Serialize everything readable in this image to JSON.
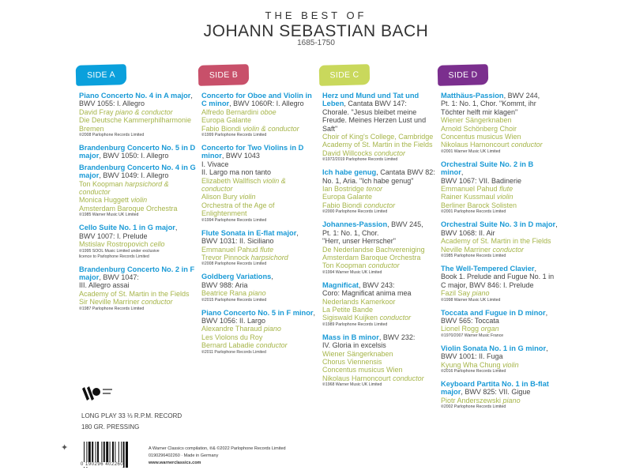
{
  "header": {
    "line1": "THE BEST OF",
    "line2": "JOHANN SEBASTIAN BACH",
    "dates": "1685-1750"
  },
  "colors": {
    "title_blue": "#1a9ad6",
    "performer_green": "#a6b54a",
    "side_a": "#0aa0dc",
    "side_b": "#c8506a",
    "side_c": "#c9d85c",
    "side_d": "#7b2f8e"
  },
  "sides": [
    {
      "label": "SIDE A",
      "color": "#0aa0dc",
      "tracks": [
        {
          "title": "Piano Concerto No. 4 in A major",
          "detail": ", BWV 1055: I. Allegro",
          "performers": [
            {
              "name": "David Fray",
              "role": "piano & conductor"
            },
            {
              "name": "Die Deutsche Kammerphilharmonie Bremen",
              "role": ""
            }
          ],
          "copyright": "℗2008 Parlophone Records Limited"
        },
        {
          "title": "Brandenburg Concerto No. 5 in D major",
          "detail": ", BWV 1050: I. Allegro",
          "performers": [],
          "copyright": ""
        },
        {
          "title": "Brandenburg Concerto No. 4 in G major",
          "detail": ", BWV 1049: I. Allegro",
          "performers": [
            {
              "name": "Ton Koopman",
              "role": "harpsichord & conductor"
            },
            {
              "name": "Monica Huggett",
              "role": "violin"
            },
            {
              "name": "Amsterdam Baroque Orchestra",
              "role": ""
            }
          ],
          "copyright": "℗1985 Warner Music UK Limited"
        },
        {
          "title": "Cello Suite No. 1 in G major",
          "detail": ",\nBWV 1007: I. Prelude",
          "performers": [
            {
              "name": "Mstislav Rostropovich",
              "role": "cello"
            }
          ],
          "copyright": "℗1995 SOOL Music Limited under exclusive\nlicence to Parlophone Records Limited"
        },
        {
          "title": "Brandenburg Concerto No. 2 in F major",
          "detail": ", BWV 1047:\nIII. Allegro assai",
          "performers": [
            {
              "name": "Academy of St. Martin in the Fields",
              "role": ""
            },
            {
              "name": "Sir Neville Marriner",
              "role": "conductor"
            }
          ],
          "copyright": "℗1987 Parlophone Records Limited"
        }
      ]
    },
    {
      "label": "SIDE B",
      "color": "#c8506a",
      "tracks": [
        {
          "title": "Concerto for Oboe and Violin in C minor",
          "detail": ", BWV 1060R: I. Allegro",
          "performers": [
            {
              "name": "Alfredo Bernardini",
              "role": "oboe"
            },
            {
              "name": "Europa Galante",
              "role": ""
            },
            {
              "name": "Fabio Biondi",
              "role": "violin & conductor"
            }
          ],
          "copyright": "℗1999 Parlophone Records Limited"
        },
        {
          "title": "Concerto for Two Violins in D minor",
          "detail": ", BWV 1043\nI.   Vivace\nII.  Largo ma non tanto",
          "performers": [
            {
              "name": "Elizabeth Wallfisch",
              "role": "violin & conductor"
            },
            {
              "name": "Alison Bury",
              "role": "violin"
            },
            {
              "name": "Orchestra of the Age of Enlightenment",
              "role": ""
            }
          ],
          "copyright": "℗1994 Parlophone Records Limited"
        },
        {
          "title": "Flute Sonata in E-flat major",
          "detail": ",\nBWV 1031: II. Siciliano",
          "performers": [
            {
              "name": "Emmanuel Pahud",
              "role": "flute"
            },
            {
              "name": "Trevor Pinnock",
              "role": "harpsichord"
            }
          ],
          "copyright": "℗2008 Parlophone Records Limited"
        },
        {
          "title": "Goldberg Variations",
          "detail": ",\nBWV 988: Aria",
          "performers": [
            {
              "name": "Beatrice Rana",
              "role": "piano"
            }
          ],
          "copyright": "℗2015 Parlophone Records Limited"
        },
        {
          "title": "Piano Concerto No. 5 in F minor",
          "detail": ", BWV 1056: II. Largo",
          "performers": [
            {
              "name": "Alexandre Tharaud",
              "role": "piano"
            },
            {
              "name": "Les Violons du Roy",
              "role": ""
            },
            {
              "name": "Bernard Labadie",
              "role": "conductor"
            }
          ],
          "copyright": "℗2011 Parlophone Records Limited"
        }
      ]
    },
    {
      "label": "SIDE C",
      "color": "#c9d85c",
      "tracks": [
        {
          "title": "Herz und Mund und Tat und Leben",
          "detail": ", Cantata BWV 147:\nChorale. \"Jesus bleibet meine Freude. Meines Herzen Lust und Saft\"",
          "performers": [
            {
              "name": "Choir of King's College, Cambridge",
              "role": ""
            },
            {
              "name": "Academy of St. Martin in the Fields",
              "role": ""
            },
            {
              "name": "David Willcocks",
              "role": "conductor"
            }
          ],
          "copyright": "℗1972/2019 Parlophone Records Limited"
        },
        {
          "title": "Ich habe genug",
          "detail": ", Cantata BWV 82:\nNo. 1, Aria. \"Ich habe genug\"",
          "performers": [
            {
              "name": "Ian Bostridge",
              "role": "tenor"
            },
            {
              "name": "Europa Galante",
              "role": ""
            },
            {
              "name": "Fabio Biondi",
              "role": "conductor"
            }
          ],
          "copyright": "℗2000 Parlophone Records Limited"
        },
        {
          "title": "Johannes-Passion",
          "detail": ", BWV 245,\nPt. 1: No. 1, Chor.\n\"Herr, unser Herrscher\"",
          "performers": [
            {
              "name": "De Nederlandse Bachvereniging",
              "role": ""
            },
            {
              "name": "Amsterdam Baroque Orchestra",
              "role": ""
            },
            {
              "name": "Ton Koopman",
              "role": "conductor"
            }
          ],
          "copyright": "℗1994 Warner Music UK Limited"
        },
        {
          "title": "Magnificat",
          "detail": ", BWV 243:\nCoro: Magnificat anima mea",
          "performers": [
            {
              "name": "Nederlands Kamerkoor",
              "role": ""
            },
            {
              "name": "La Petite Bande",
              "role": ""
            },
            {
              "name": "Sigiswald Kuijken",
              "role": "conductor"
            }
          ],
          "copyright": "℗1989 Parlophone Records Limited"
        },
        {
          "title": "Mass in B minor",
          "detail": ", BWV 232:\nIV. Gloria in excelsis",
          "performers": [
            {
              "name": "Wiener Sängerknaben",
              "role": ""
            },
            {
              "name": "Chorus Viennensis",
              "role": ""
            },
            {
              "name": "Concentus musicus Wien",
              "role": ""
            },
            {
              "name": "Nikolaus Harnoncourt",
              "role": "conductor"
            }
          ],
          "copyright": "℗1968 Warner Music UK Limited"
        }
      ]
    },
    {
      "label": "SIDE D",
      "color": "#7b2f8e",
      "tracks": [
        {
          "title": "Matthäus-Passion",
          "detail": ", BWV 244,\nPt. 1: No. 1, Chor. \"Kommt, ihr Töchter helft mir klagen\"",
          "performers": [
            {
              "name": "Wiener Sängerknaben",
              "role": ""
            },
            {
              "name": "Arnold Schönberg Choir",
              "role": ""
            },
            {
              "name": "Concentus musicus Wien",
              "role": ""
            },
            {
              "name": "Nikolaus Harnoncourt",
              "role": "conductor"
            }
          ],
          "copyright": "℗2001 Warner Music UK Limited"
        },
        {
          "title": "Orchestral Suite No. 2 in B minor",
          "detail": ",\nBWV 1067: VII. Badinerie",
          "performers": [
            {
              "name": "Emmanuel Pahud",
              "role": "flute"
            },
            {
              "name": "Rainer Kussmaul",
              "role": "violin"
            },
            {
              "name": "Berliner Barock Solisten",
              "role": ""
            }
          ],
          "copyright": "℗2001 Parlophone Records Limited"
        },
        {
          "title": "Orchestral Suite No. 3 in D major",
          "detail": ", BWV 1068: II. Air",
          "performers": [
            {
              "name": "Academy of St. Martin in the Fields",
              "role": ""
            },
            {
              "name": "Neville Marriner",
              "role": "conductor"
            }
          ],
          "copyright": "℗1985 Parlophone Records Limited"
        },
        {
          "title": "The Well-Tempered Clavier",
          "detail": ",\nBook 1. Prelude and Fugue No. 1 in C major, BWV 846: I. Prelude",
          "performers": [
            {
              "name": "Fazil Say",
              "role": "piano"
            }
          ],
          "copyright": "℗1998 Warner Music UK Limited"
        },
        {
          "title": "Toccata and Fugue in D minor",
          "detail": ",\nBWV 565: Toccata",
          "performers": [
            {
              "name": "Lionel Rogg",
              "role": "organ"
            }
          ],
          "copyright": "℗1970/2007 Warner Music France"
        },
        {
          "title": "Violin Sonata No. 1 in G minor",
          "detail": ",\nBWV 1001: II. Fuga",
          "performers": [
            {
              "name": "Kyung Wha Chung",
              "role": "violin"
            }
          ],
          "copyright": "℗2016 Parlophone Records Limited"
        },
        {
          "title": "Keyboard Partita No. 1 in B-flat major",
          "detail": ", BWV 825: VII. Gigue",
          "performers": [
            {
              "name": "Piotr Anderszewski",
              "role": "piano"
            }
          ],
          "copyright": "℗2002 Parlophone Records Limited"
        }
      ]
    }
  ],
  "footer": {
    "logo_text": "WARNER CLASSICS",
    "lp_line1": "LONG PLAY 33 ⅓ R.P.M. RECORD",
    "lp_line2": "180 GR. PRESSING",
    "barcode_number": "0 190296 402260",
    "credit_line": "A Warner Classics compilation, ℗& ©2022 Parlophone Records Limited",
    "catalog_line": "0190296402260 · Made in Germany",
    "website": "www.warnerclassics.com"
  }
}
